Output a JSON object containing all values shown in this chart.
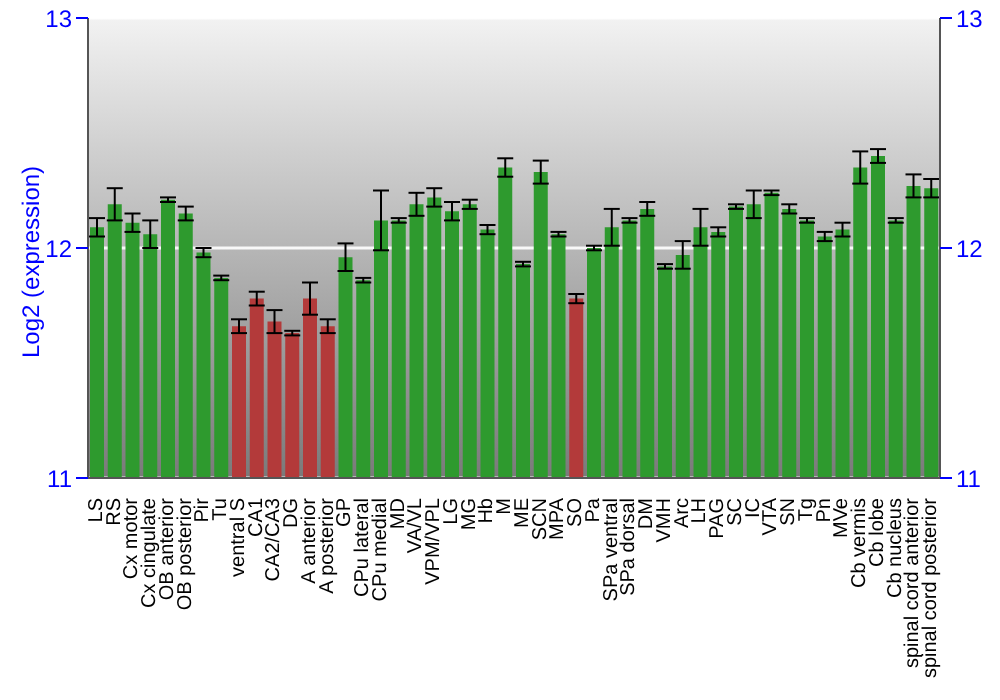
{
  "chart_data": {
    "type": "bar",
    "ylabel": "Log2 (expression)",
    "categories": [
      "LS",
      "RS",
      "Cx motor",
      "Cx cingulate",
      "OB anterior",
      "OB posterior",
      "Pir",
      "Tu",
      "ventral S",
      "CA1",
      "CA2/CA3",
      "DG",
      "A anterior",
      "A posterior",
      "GP",
      "CPu lateral",
      "CPu medial",
      "MD",
      "VA/VL",
      "VPM/VPL",
      "LG",
      "MG",
      "Hb",
      "M",
      "ME",
      "SCN",
      "MPA",
      "SO",
      "Pa",
      "SPa ventral",
      "SPa dorsal",
      "DM",
      "VMH",
      "Arc",
      "LH",
      "PAG",
      "SC",
      "IC",
      "VTA",
      "SN",
      "Tg",
      "Pn",
      "MVe",
      "Cb vermis",
      "Cb lobe",
      "Cb nucleus",
      "spinal cord anterior",
      "spinal cord posterior"
    ],
    "values": [
      12.09,
      12.19,
      12.11,
      12.06,
      12.21,
      12.15,
      11.98,
      11.87,
      11.66,
      11.78,
      11.68,
      11.63,
      11.78,
      11.66,
      11.96,
      11.86,
      12.12,
      12.12,
      12.19,
      12.22,
      12.16,
      12.19,
      12.08,
      12.35,
      11.93,
      12.33,
      12.06,
      11.78,
      12.0,
      12.09,
      12.12,
      12.17,
      11.92,
      11.97,
      12.09,
      12.07,
      12.18,
      12.19,
      12.24,
      12.17,
      12.12,
      12.05,
      12.08,
      12.35,
      12.4,
      12.12,
      12.27,
      12.26
    ],
    "errors": [
      0.04,
      0.07,
      0.04,
      0.06,
      0.01,
      0.03,
      0.02,
      0.01,
      0.03,
      0.03,
      0.05,
      0.01,
      0.07,
      0.03,
      0.06,
      0.01,
      0.13,
      0.01,
      0.05,
      0.04,
      0.04,
      0.02,
      0.02,
      0.04,
      0.01,
      0.05,
      0.01,
      0.02,
      0.01,
      0.08,
      0.01,
      0.03,
      0.01,
      0.06,
      0.08,
      0.02,
      0.01,
      0.06,
      0.01,
      0.02,
      0.01,
      0.02,
      0.03,
      0.07,
      0.03,
      0.01,
      0.05,
      0.04
    ],
    "colors": [
      "#2e9a2e",
      "#2e9a2e",
      "#2e9a2e",
      "#2e9a2e",
      "#2e9a2e",
      "#2e9a2e",
      "#2e9a2e",
      "#2e9a2e",
      "#b33a3a",
      "#b33a3a",
      "#b33a3a",
      "#b33a3a",
      "#b33a3a",
      "#b33a3a",
      "#2e9a2e",
      "#2e9a2e",
      "#2e9a2e",
      "#2e9a2e",
      "#2e9a2e",
      "#2e9a2e",
      "#2e9a2e",
      "#2e9a2e",
      "#2e9a2e",
      "#2e9a2e",
      "#2e9a2e",
      "#2e9a2e",
      "#2e9a2e",
      "#b33a3a",
      "#2e9a2e",
      "#2e9a2e",
      "#2e9a2e",
      "#2e9a2e",
      "#2e9a2e",
      "#2e9a2e",
      "#2e9a2e",
      "#2e9a2e",
      "#2e9a2e",
      "#2e9a2e",
      "#2e9a2e",
      "#2e9a2e",
      "#2e9a2e",
      "#2e9a2e",
      "#2e9a2e",
      "#2e9a2e",
      "#2e9a2e",
      "#2e9a2e",
      "#2e9a2e",
      "#2e9a2e"
    ],
    "ylim": [
      11,
      13
    ],
    "yticks": [
      11,
      12,
      13
    ],
    "y2lim": [
      11,
      13
    ],
    "y2ticks": [
      11,
      12,
      13
    ],
    "grid": "y"
  }
}
